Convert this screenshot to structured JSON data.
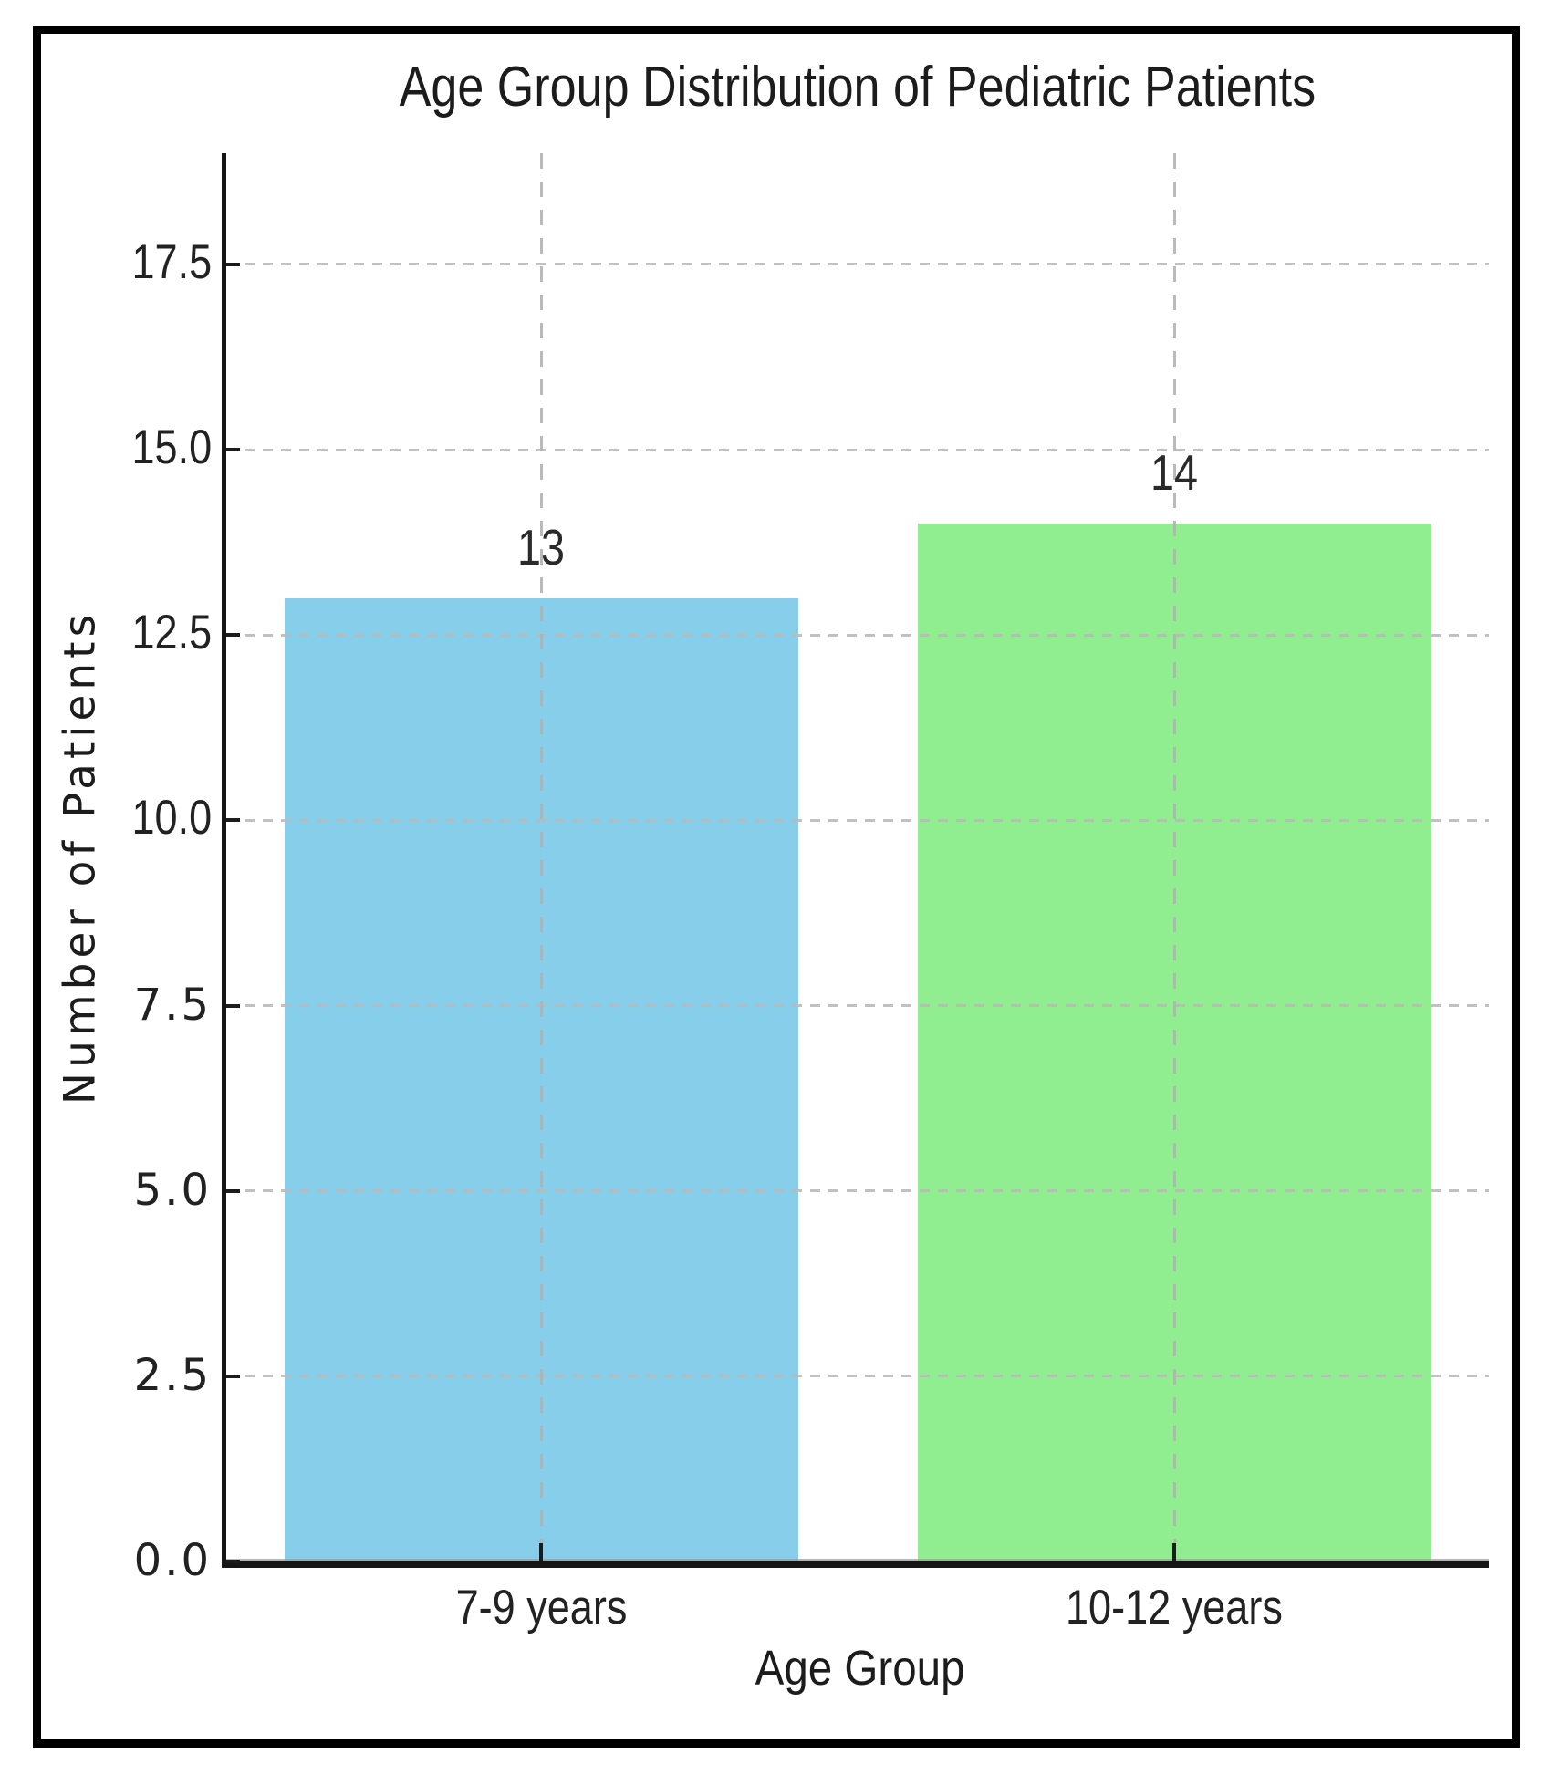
{
  "chart_data": {
    "type": "bar",
    "title": "Age Group Distribution of Pediatric Patients",
    "categories": [
      "7-9 years",
      "10-12 years"
    ],
    "values": [
      13,
      14
    ],
    "bar_labels": [
      "13",
      "14"
    ],
    "bar_colors": [
      "#87CEEB",
      "#90EE90"
    ],
    "bar_names": [
      "bar-7-9-years",
      "bar-10-12-years"
    ],
    "xlabel": "Age Group",
    "ylabel": "Number of Patients",
    "ytick_labels": [
      "0.0",
      "2.5",
      "5.0",
      "7.5",
      "10.0",
      "12.5",
      "15.0",
      "17.5"
    ],
    "yticks": [
      0,
      2.5,
      5,
      7.5,
      10,
      12.5,
      15,
      17.5
    ],
    "ylim": [
      0,
      19
    ],
    "grid": "dashed",
    "grid_color": "#bababa",
    "legend": "none",
    "text_color": "#202020",
    "background_color": "#ffffff",
    "frame_color": "#000000"
  }
}
